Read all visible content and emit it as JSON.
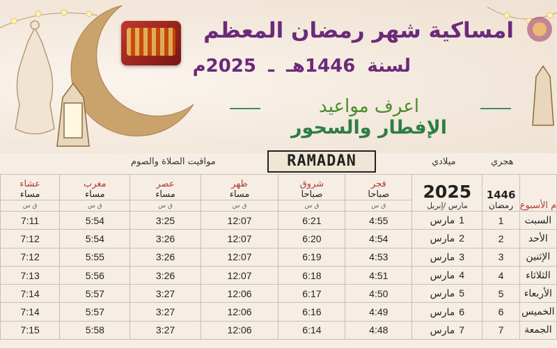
{
  "header": {
    "title": "امساكية شهر رمضان المعظم",
    "year_prefix": "لسنة",
    "year_hijri": "1446هـ",
    "dash": "ـ",
    "year_greg": "2025م",
    "subtitle1": "اعرف مواعيد",
    "subtitle2": "الإفطار والسحور"
  },
  "table": {
    "hijri_label": "هجري",
    "greg_label": "ميلادي",
    "section_label": "مواقيت الصلاة والصوم",
    "ramadan_tag": "RAMADAN",
    "days_header": "أيام الأسبوع",
    "hijri_col_num": "1446",
    "hijri_col_month": "رمضان",
    "greg_col_year": "2025",
    "greg_col_months": "مارس /إبريل",
    "prayers": [
      {
        "name": "فجر",
        "period": "صباحا"
      },
      {
        "name": "شروق",
        "period": "صباحا"
      },
      {
        "name": "ظهر",
        "period": "مساء"
      },
      {
        "name": "عصر",
        "period": "مساء"
      },
      {
        "name": "مغرب",
        "period": "مساء"
      },
      {
        "name": "عشاء",
        "period": "مساء"
      }
    ],
    "sub_unit": "ق س",
    "rows": [
      {
        "weekday": "السبت",
        "hijri": "1",
        "greg_day": "1",
        "greg_month": "مارس",
        "fajr": "4:55",
        "shuruq": "6:21",
        "dhuhr": "12:07",
        "asr": "3:25",
        "maghrib": "5:54",
        "isha": "7:11"
      },
      {
        "weekday": "الأحد",
        "hijri": "2",
        "greg_day": "2",
        "greg_month": "مارس",
        "fajr": "4:54",
        "shuruq": "6:20",
        "dhuhr": "12:07",
        "asr": "3:26",
        "maghrib": "5:54",
        "isha": "7:12"
      },
      {
        "weekday": "الإثنين",
        "hijri": "3",
        "greg_day": "3",
        "greg_month": "مارس",
        "fajr": "4:53",
        "shuruq": "6:19",
        "dhuhr": "12:07",
        "asr": "3:26",
        "maghrib": "5:55",
        "isha": "7:12"
      },
      {
        "weekday": "الثلاثاء",
        "hijri": "4",
        "greg_day": "4",
        "greg_month": "مارس",
        "fajr": "4:51",
        "shuruq": "6:18",
        "dhuhr": "12:07",
        "asr": "3:26",
        "maghrib": "5:56",
        "isha": "7:13"
      },
      {
        "weekday": "الأربعاء",
        "hijri": "5",
        "greg_day": "5",
        "greg_month": "مارس",
        "fajr": "4:50",
        "shuruq": "6:17",
        "dhuhr": "12:06",
        "asr": "3:27",
        "maghrib": "5:57",
        "isha": "7:14"
      },
      {
        "weekday": "الخميس",
        "hijri": "6",
        "greg_day": "6",
        "greg_month": "مارس",
        "fajr": "4:49",
        "shuruq": "6:16",
        "dhuhr": "12:06",
        "asr": "3:27",
        "maghrib": "5:57",
        "isha": "7:14"
      },
      {
        "weekday": "الجمعة",
        "hijri": "7",
        "greg_day": "7",
        "greg_month": "مارس",
        "fajr": "4:48",
        "shuruq": "6:14",
        "dhuhr": "12:06",
        "asr": "3:27",
        "maghrib": "5:58",
        "isha": "7:15"
      }
    ]
  }
}
